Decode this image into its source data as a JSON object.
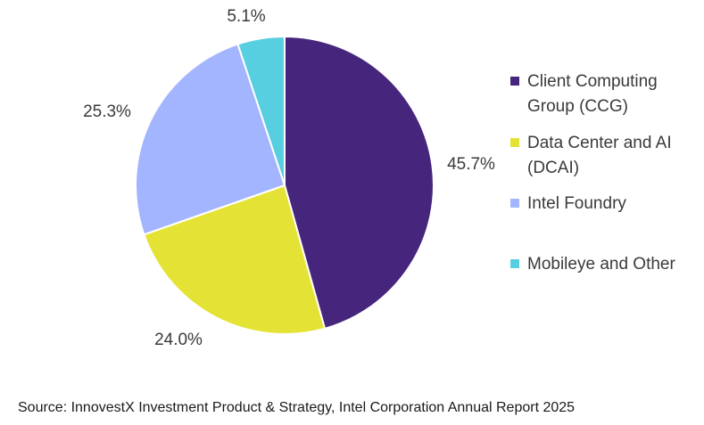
{
  "chart_data": {
    "type": "pie",
    "slices": [
      {
        "label": "Client Computing Group (CCG)",
        "label_lines": [
          "Client Computing",
          "Group (CCG)"
        ],
        "value": 45.7,
        "value_label": "45.7%",
        "color": "#46257c"
      },
      {
        "label": "Data Center and AI (DCAI)",
        "label_lines": [
          "Data Center and AI",
          "(DCAI)"
        ],
        "value": 24.0,
        "value_label": "24.0%",
        "color": "#e4e335"
      },
      {
        "label": "Intel Foundry",
        "label_lines": [
          "Intel Foundry"
        ],
        "value": 25.3,
        "value_label": "25.3%",
        "color": "#a4b5ff"
      },
      {
        "label": "Mobileye and Other",
        "label_lines": [
          "Mobileye and Other"
        ],
        "value": 5.1,
        "value_label": "5.1%",
        "color": "#58cfe0"
      }
    ],
    "start": "12 o'clock",
    "direction": "clockwise",
    "legend_position": "right"
  },
  "source": "Source: InnovestX Investment Product & Strategy, Intel Corporation Annual Report 2025"
}
